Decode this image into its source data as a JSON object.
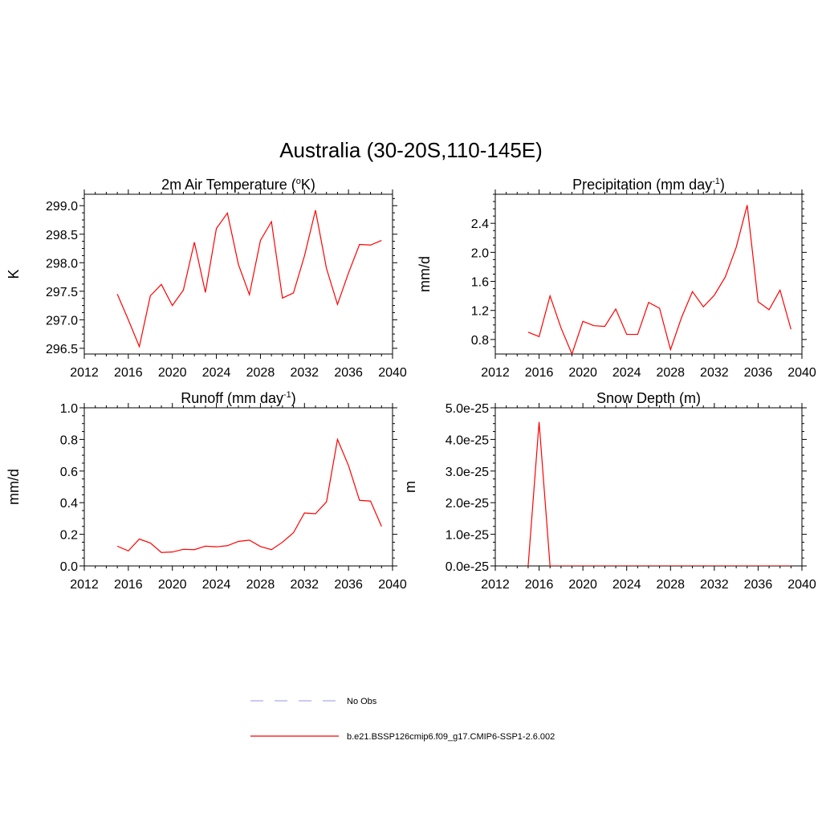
{
  "figure": {
    "title": "Australia (30-20S,110-145E)"
  },
  "chart_data": [
    {
      "type": "line",
      "title": "2m Air Temperature (",
      "title_sup": "o",
      "title_suffix": "K)",
      "title_after": "",
      "ylabel": "K",
      "xlim": [
        2012,
        2040
      ],
      "ylim": [
        296.4,
        299.2
      ],
      "xticks": [
        "2012",
        "2016",
        "2020",
        "2024",
        "2028",
        "2032",
        "2036",
        "2040"
      ],
      "yticks": [
        "296.5",
        "297.0",
        "297.5",
        "298.0",
        "298.5",
        "299.0"
      ],
      "ytick_values": [
        296.5,
        297.0,
        297.5,
        298.0,
        298.5,
        299.0
      ],
      "x": [
        2015,
        2016,
        2017,
        2018,
        2019,
        2020,
        2021,
        2022,
        2023,
        2024,
        2025,
        2026,
        2027,
        2028,
        2029,
        2030,
        2031,
        2032,
        2033,
        2034,
        2035,
        2036,
        2037,
        2038,
        2039
      ],
      "series": [
        {
          "name": "b.e21.BSSP126cmip6.f09_g17.CMIP6-SSP1-2.6.002",
          "color": "#ff0000",
          "values": [
            297.45,
            297.0,
            296.53,
            297.42,
            297.62,
            297.25,
            297.52,
            298.36,
            297.48,
            298.6,
            298.87,
            297.97,
            297.44,
            298.39,
            298.72,
            297.38,
            297.47,
            298.12,
            298.92,
            297.9,
            297.27,
            297.82,
            298.32,
            298.31,
            298.39
          ]
        }
      ]
    },
    {
      "type": "line",
      "title": "Precipitation (mm day",
      "title_sup": "-1",
      "title_suffix": ")",
      "title_after": "",
      "ylabel": "mm/d",
      "xlim": [
        2012,
        2040
      ],
      "ylim": [
        0.6,
        2.8
      ],
      "xticks": [
        "2012",
        "2016",
        "2020",
        "2024",
        "2028",
        "2032",
        "2036",
        "2040"
      ],
      "yticks": [
        "0.8",
        "1.2",
        "1.6",
        "2.0",
        "2.4"
      ],
      "ytick_values": [
        0.8,
        1.2,
        1.6,
        2.0,
        2.4
      ],
      "x": [
        2015,
        2016,
        2017,
        2018,
        2019,
        2020,
        2021,
        2022,
        2023,
        2024,
        2025,
        2026,
        2027,
        2028,
        2029,
        2030,
        2031,
        2032,
        2033,
        2034,
        2035,
        2036,
        2037,
        2038,
        2039
      ],
      "series": [
        {
          "name": "b.e21.BSSP126cmip6.f09_g17.CMIP6-SSP1-2.6.002",
          "color": "#ff0000",
          "values": [
            0.9,
            0.84,
            1.4,
            0.96,
            0.6,
            1.05,
            0.99,
            0.98,
            1.22,
            0.87,
            0.87,
            1.31,
            1.23,
            0.66,
            1.1,
            1.46,
            1.25,
            1.41,
            1.66,
            2.07,
            2.65,
            1.32,
            1.21,
            1.48,
            0.94
          ]
        }
      ]
    },
    {
      "type": "line",
      "title": "Runoff (mm day",
      "title_sup": "-1",
      "title_suffix": ")",
      "title_after": "",
      "ylabel": "mm/d",
      "xlim": [
        2012,
        2040
      ],
      "ylim": [
        0.0,
        1.0
      ],
      "xticks": [
        "2012",
        "2016",
        "2020",
        "2024",
        "2028",
        "2032",
        "2036",
        "2040"
      ],
      "yticks": [
        "0.0",
        "0.2",
        "0.4",
        "0.6",
        "0.8",
        "1.0"
      ],
      "ytick_values": [
        0.0,
        0.2,
        0.4,
        0.6,
        0.8,
        1.0
      ],
      "x": [
        2015,
        2016,
        2017,
        2018,
        2019,
        2020,
        2021,
        2022,
        2023,
        2024,
        2025,
        2026,
        2027,
        2028,
        2029,
        2030,
        2031,
        2032,
        2033,
        2034,
        2035,
        2036,
        2037,
        2038,
        2039
      ],
      "series": [
        {
          "name": "b.e21.BSSP126cmip6.f09_g17.CMIP6-SSP1-2.6.002",
          "color": "#ff0000",
          "values": [
            0.125,
            0.095,
            0.17,
            0.145,
            0.085,
            0.088,
            0.105,
            0.103,
            0.125,
            0.121,
            0.128,
            0.155,
            0.163,
            0.123,
            0.103,
            0.15,
            0.21,
            0.335,
            0.33,
            0.405,
            0.8,
            0.635,
            0.415,
            0.41,
            0.25
          ]
        }
      ]
    },
    {
      "type": "line",
      "title": "Snow Depth (m)",
      "title_sup": "",
      "title_suffix": "",
      "title_after": "",
      "ylabel": "m",
      "xlim": [
        2012,
        2040
      ],
      "ylim": [
        0.0,
        5e-25
      ],
      "xticks": [
        "2012",
        "2016",
        "2020",
        "2024",
        "2028",
        "2032",
        "2036",
        "2040"
      ],
      "yticks": [
        "0.0e-25",
        "1.0e-25",
        "2.0e-25",
        "3.0e-25",
        "4.0e-25",
        "5.0e-25"
      ],
      "ytick_values": [
        0.0,
        1e-25,
        2e-25,
        3e-25,
        4e-25,
        5e-25
      ],
      "x": [
        2015,
        2016,
        2017,
        2018,
        2019,
        2020,
        2021,
        2022,
        2023,
        2024,
        2025,
        2026,
        2027,
        2028,
        2029,
        2030,
        2031,
        2032,
        2033,
        2034,
        2035,
        2036,
        2037,
        2038,
        2039
      ],
      "series": [
        {
          "name": "b.e21.BSSP126cmip6.f09_g17.CMIP6-SSP1-2.6.002",
          "color": "#ff0000",
          "values": [
            0,
            4.55e-25,
            0,
            0,
            0,
            0,
            0,
            0,
            0,
            0,
            0,
            0,
            0,
            0,
            0,
            0,
            0,
            0,
            0,
            0,
            0,
            0,
            0,
            0,
            0
          ]
        }
      ]
    }
  ],
  "legend": {
    "placement": "bottom-center",
    "items": [
      {
        "label": "No Obs",
        "color": "#aaaaee",
        "style": "dashed"
      },
      {
        "label": "b.e21.BSSP126cmip6.f09_g17.CMIP6-SSP1-2.6.002",
        "color": "#ff0000",
        "style": "solid"
      }
    ]
  }
}
